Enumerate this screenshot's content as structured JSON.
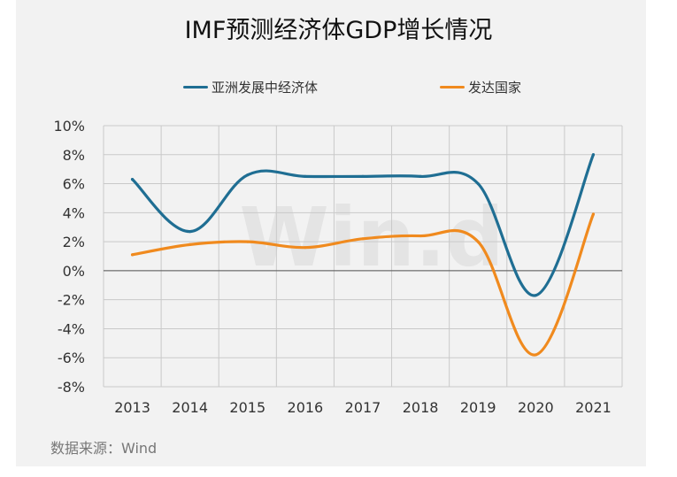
{
  "title": "IMF预测经济体GDP增长情况",
  "source": "数据来源：Wind",
  "watermark": "Win.d",
  "colors": {
    "asia": "#1f6e93",
    "developed": "#f08a1e",
    "grid": "#c9c9c9",
    "zero": "#555555",
    "panel": "#f2f2f2"
  },
  "chart_data": {
    "type": "line",
    "title": "IMF预测经济体GDP增长情况",
    "categories": [
      "2013",
      "2014",
      "2015",
      "2016",
      "2017",
      "2018",
      "2019",
      "2020",
      "2021"
    ],
    "y_ticks": [
      "10%",
      "8%",
      "6%",
      "4%",
      "2%",
      "0%",
      "-2%",
      "-4%",
      "-6%",
      "-8%"
    ],
    "ylim": [
      -8,
      10
    ],
    "series": [
      {
        "name": "亚洲发展中经济体",
        "values": [
          6.3,
          2.7,
          6.6,
          6.5,
          6.5,
          6.5,
          6.0,
          -1.7,
          8.0
        ]
      },
      {
        "name": "发达国家",
        "values": [
          1.1,
          1.8,
          2.0,
          1.6,
          2.2,
          2.4,
          2.0,
          -5.8,
          3.9
        ]
      }
    ],
    "grid": true,
    "legend": "top"
  }
}
